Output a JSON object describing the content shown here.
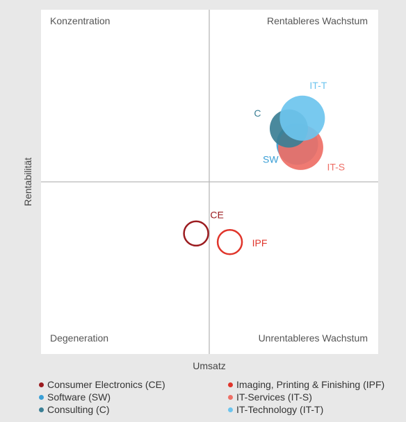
{
  "chart_data": {
    "type": "bubble-matrix",
    "xlabel": "Umsatz",
    "ylabel": "Rentabilität",
    "quadrants": {
      "top_left": "Konzentration",
      "top_right": "Rentableres Wachstum",
      "bottom_left": "Degeneration",
      "bottom_right": "Unrentableres Wachstum"
    },
    "series": [
      {
        "name": "Consumer Electronics (CE)",
        "label": "CE",
        "x": -0.08,
        "y": -0.3,
        "size": 0.7,
        "filled": false,
        "color": "#9b1b1f"
      },
      {
        "name": "Imaging, Printing & Finishing (IPF)",
        "label": "IPF",
        "x": 0.12,
        "y": -0.35,
        "size": 0.7,
        "filled": false,
        "color": "#e0352b"
      },
      {
        "name": "Software (SW)",
        "label": "SW",
        "x": 0.52,
        "y": 0.22,
        "size": 1.2,
        "filled": true,
        "color": "#3a9fd6"
      },
      {
        "name": "IT-Services (IT-S)",
        "label": "IT-S",
        "x": 0.54,
        "y": 0.2,
        "size": 1.3,
        "filled": true,
        "color": "#ee6f66"
      },
      {
        "name": "Consulting (C)",
        "label": "C",
        "x": 0.47,
        "y": 0.31,
        "size": 1.1,
        "filled": true,
        "color": "#3b7f95"
      },
      {
        "name": "IT-Technology (IT-T)",
        "label": "IT-T",
        "x": 0.55,
        "y": 0.37,
        "size": 1.3,
        "filled": true,
        "color": "#6cc4ee"
      }
    ],
    "xlim": [
      -1,
      1
    ],
    "ylim": [
      -1,
      1
    ],
    "grid": false,
    "legend_position": "bottom"
  }
}
